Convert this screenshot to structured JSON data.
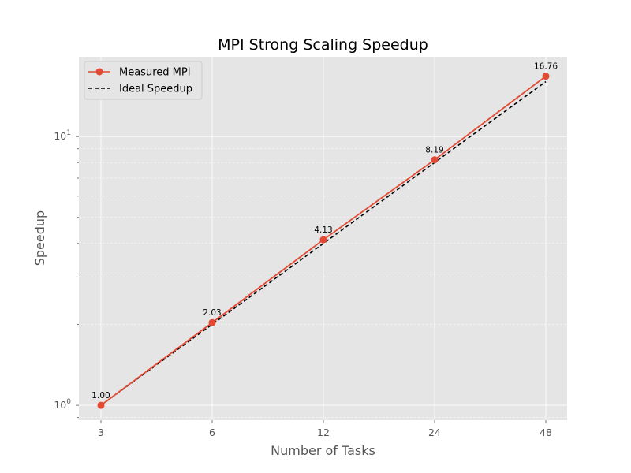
{
  "chart_data": {
    "type": "line",
    "title": "MPI Strong Scaling Speedup",
    "xlabel": "Number of Tasks",
    "ylabel": "Speedup",
    "x_scale": "log2",
    "y_scale": "log10",
    "x": [
      3,
      6,
      12,
      24,
      48
    ],
    "x_tick_labels": [
      "3",
      "6",
      "12",
      "24",
      "48"
    ],
    "y_ticks": [
      {
        "base": "10",
        "exp": "0",
        "value": 1
      },
      {
        "base": "10",
        "exp": "1",
        "value": 10
      }
    ],
    "ylim": [
      0.88,
      19.8
    ],
    "grid": true,
    "legend_position": "top-left",
    "series": [
      {
        "name": "Measured MPI",
        "values": [
          1.0,
          2.03,
          4.13,
          8.19,
          16.76
        ],
        "labels": [
          "1.00",
          "2.03",
          "4.13",
          "8.19",
          "16.76"
        ],
        "color": "#E24A33",
        "style": "solid",
        "marker": "circle"
      },
      {
        "name": "Ideal Speedup",
        "values": [
          1,
          2,
          4,
          8,
          16
        ],
        "color": "#000000",
        "style": "dashed",
        "marker": "none"
      }
    ],
    "colors": {
      "plot_background": "#E5E5E5",
      "grid": "#FFFFFF"
    }
  }
}
